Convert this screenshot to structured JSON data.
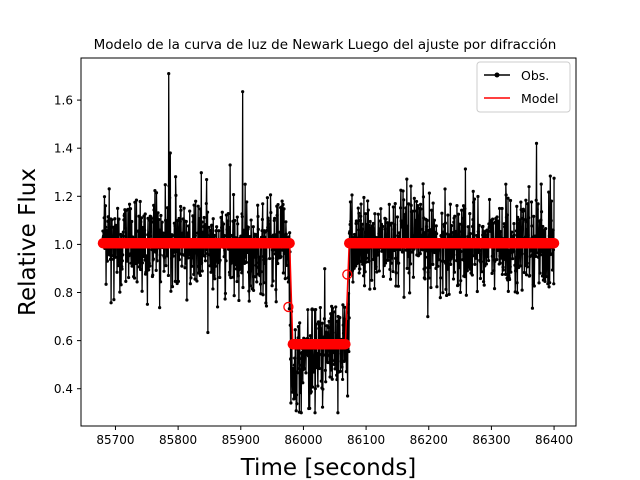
{
  "chart_data": {
    "type": "line",
    "title": "Modelo de la curva de luz de Newark Luego del ajuste por difracción",
    "xlabel": "Time [seconds]",
    "ylabel": "Relative Flux",
    "xlim": [
      85645,
      86435
    ],
    "ylim": [
      0.245,
      1.775
    ],
    "xticks": [
      85700,
      85800,
      85900,
      86000,
      86100,
      86200,
      86300,
      86400
    ],
    "yticks": [
      0.4,
      0.6,
      0.8,
      1.0,
      1.2,
      1.4,
      1.6
    ],
    "ytick_labels": [
      "0.4",
      "0.6",
      "0.8",
      "1.0",
      "1.2",
      "1.4",
      "1.6"
    ],
    "grid": false,
    "legend_position": "top-right",
    "series": [
      {
        "name": "Obs.",
        "style": "black line with dot markers",
        "color": "#000000",
        "x_range": [
          85680,
          86400
        ],
        "sample_step": 0.5,
        "out_of_event_level": 1.0,
        "in_event_level": 0.5,
        "event_range": [
          85979,
          86073
        ],
        "noise_sigma": 0.1,
        "spikes": [
          [
            85785,
            1.71
          ],
          [
            85787.5,
            1.38
          ],
          [
            85903,
            1.635
          ],
          [
            86372,
            1.42
          ]
        ]
      },
      {
        "name": "Model",
        "style": "red step line with filled circle markers",
        "color": "#ff0000",
        "x_range": [
          85680,
          86400
        ],
        "high_level": 1.005,
        "low_level": 0.585,
        "ingress": [
          85978,
          85983
        ],
        "egress": [
          86067,
          86073
        ],
        "transition_points": [
          [
            85976,
            0.74
          ],
          [
            86070,
            0.875
          ]
        ]
      }
    ]
  }
}
